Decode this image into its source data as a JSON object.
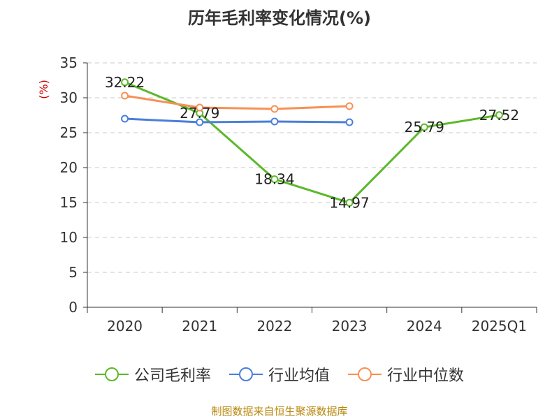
{
  "title": "历年毛利率变化情况(%)",
  "footer": "制图数据来自恒生聚源数据库",
  "chart_data": {
    "type": "line",
    "title": "历年毛利率变化情况(%)",
    "ylabel": "(%)",
    "xlabel": "",
    "categories": [
      "2020",
      "2021",
      "2022",
      "2023",
      "2024",
      "2025Q1"
    ],
    "ylim": [
      0,
      35
    ],
    "yticks": [
      0,
      5,
      10,
      15,
      20,
      25,
      30,
      35
    ],
    "grid": true,
    "legend_position": "bottom",
    "series": [
      {
        "name": "公司毛利率",
        "color": "#5cb82a",
        "values": [
          32.22,
          27.79,
          18.34,
          14.97,
          25.79,
          27.52
        ],
        "labels": [
          "32.22",
          "27.79",
          "18.34",
          "14.97",
          "25.79",
          "27.52"
        ]
      },
      {
        "name": "行业均值",
        "color": "#4a7fd9",
        "values": [
          27.0,
          26.5,
          26.6,
          26.5,
          null,
          null
        ]
      },
      {
        "name": "行业中位数",
        "color": "#f79055",
        "values": [
          30.3,
          28.6,
          28.4,
          28.8,
          null,
          null
        ]
      }
    ]
  }
}
